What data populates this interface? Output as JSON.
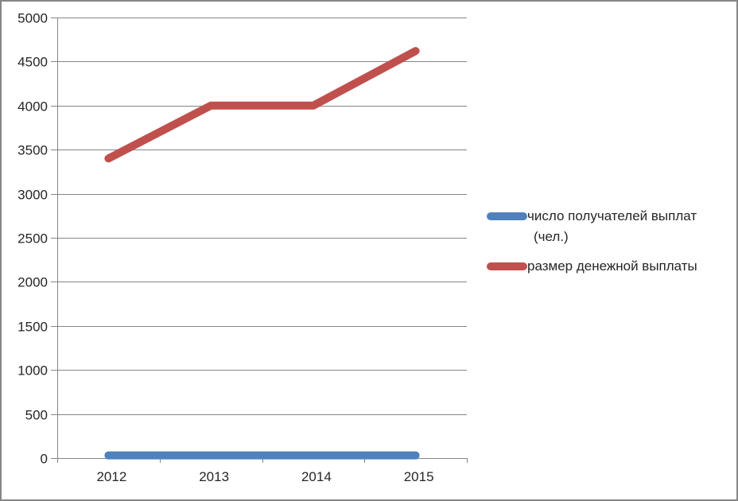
{
  "chart_data": {
    "type": "line",
    "title": "",
    "xlabel": "",
    "ylabel": "",
    "categories": [
      "2012",
      "2013",
      "2014",
      "2015"
    ],
    "series": [
      {
        "name": "число получателей выплат (чел.)",
        "color": "#4F81BD",
        "values": [
          30,
          30,
          30,
          30
        ]
      },
      {
        "name": "размер денежной выплаты",
        "color": "#C0504D",
        "values": [
          3400,
          4000,
          4000,
          4620
        ]
      }
    ],
    "ylim": [
      0,
      5000
    ],
    "ytick_step": 500,
    "grid": true,
    "legend_position": "right"
  },
  "colors": {
    "gridline": "#868686",
    "axis": "#868686",
    "text": "#262626",
    "border": "#868686",
    "background": "#ffffff"
  }
}
